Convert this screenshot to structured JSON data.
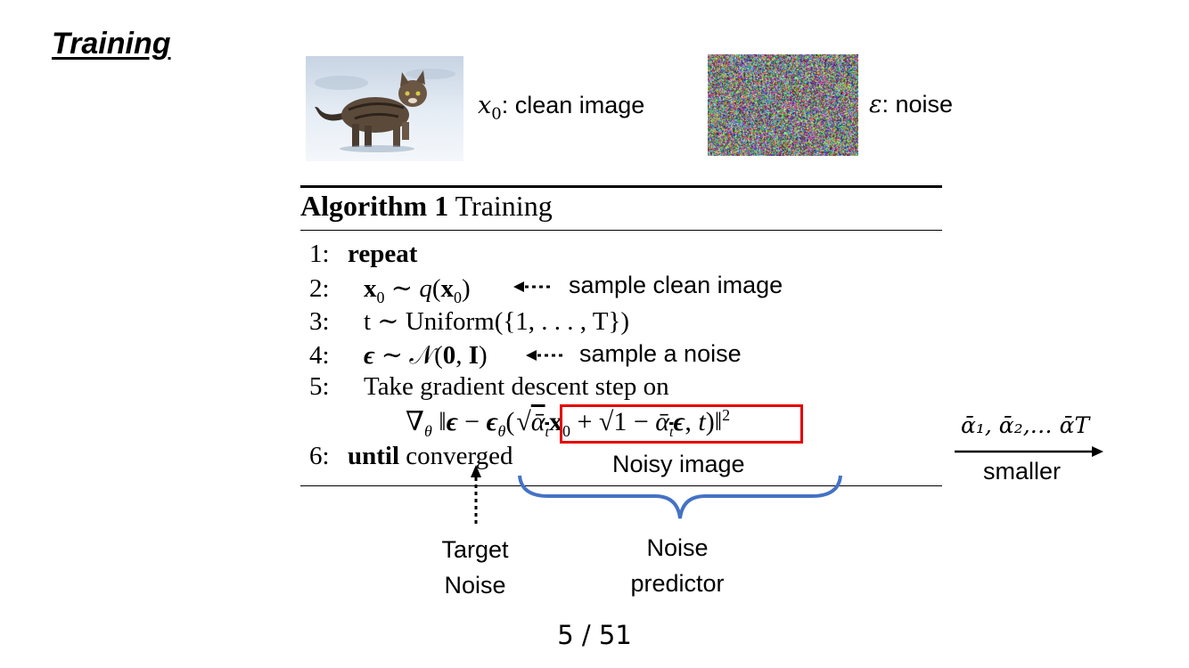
{
  "slide": {
    "title": "Training",
    "page_indicator": "5 / 51"
  },
  "images": {
    "clean_caption_var": "x",
    "clean_caption_sub": "0",
    "clean_caption_text": ": clean image",
    "noise_caption_var": "ε",
    "noise_caption_text": ": noise"
  },
  "algorithm": {
    "header_bold": "Algorithm 1",
    "header_name": "Training",
    "lines": [
      {
        "num": "1:",
        "keyword": "repeat"
      },
      {
        "num": "2:"
      },
      {
        "num": "3:",
        "text": "t ∼ Uniform({1, . . . , T})"
      },
      {
        "num": "4:"
      },
      {
        "num": "5:",
        "text": "Take gradient descent step on"
      },
      {
        "num": "6:",
        "keyword": "until",
        "text": "converged"
      }
    ]
  },
  "annotations": {
    "sample_clean": "sample clean image",
    "sample_noise": "sample a noise",
    "noisy_image": "Noisy image",
    "target_noise_line1": "Target",
    "target_noise_line2": "Noise",
    "noise_predictor_line1": "Noise",
    "noise_predictor_line2": "predictor",
    "alpha_sequence": "ᾱ₁, ᾱ₂,… ᾱT",
    "alpha_direction": "smaller"
  },
  "colors": {
    "red_box": "#e60000",
    "brace": "#4472c4"
  }
}
